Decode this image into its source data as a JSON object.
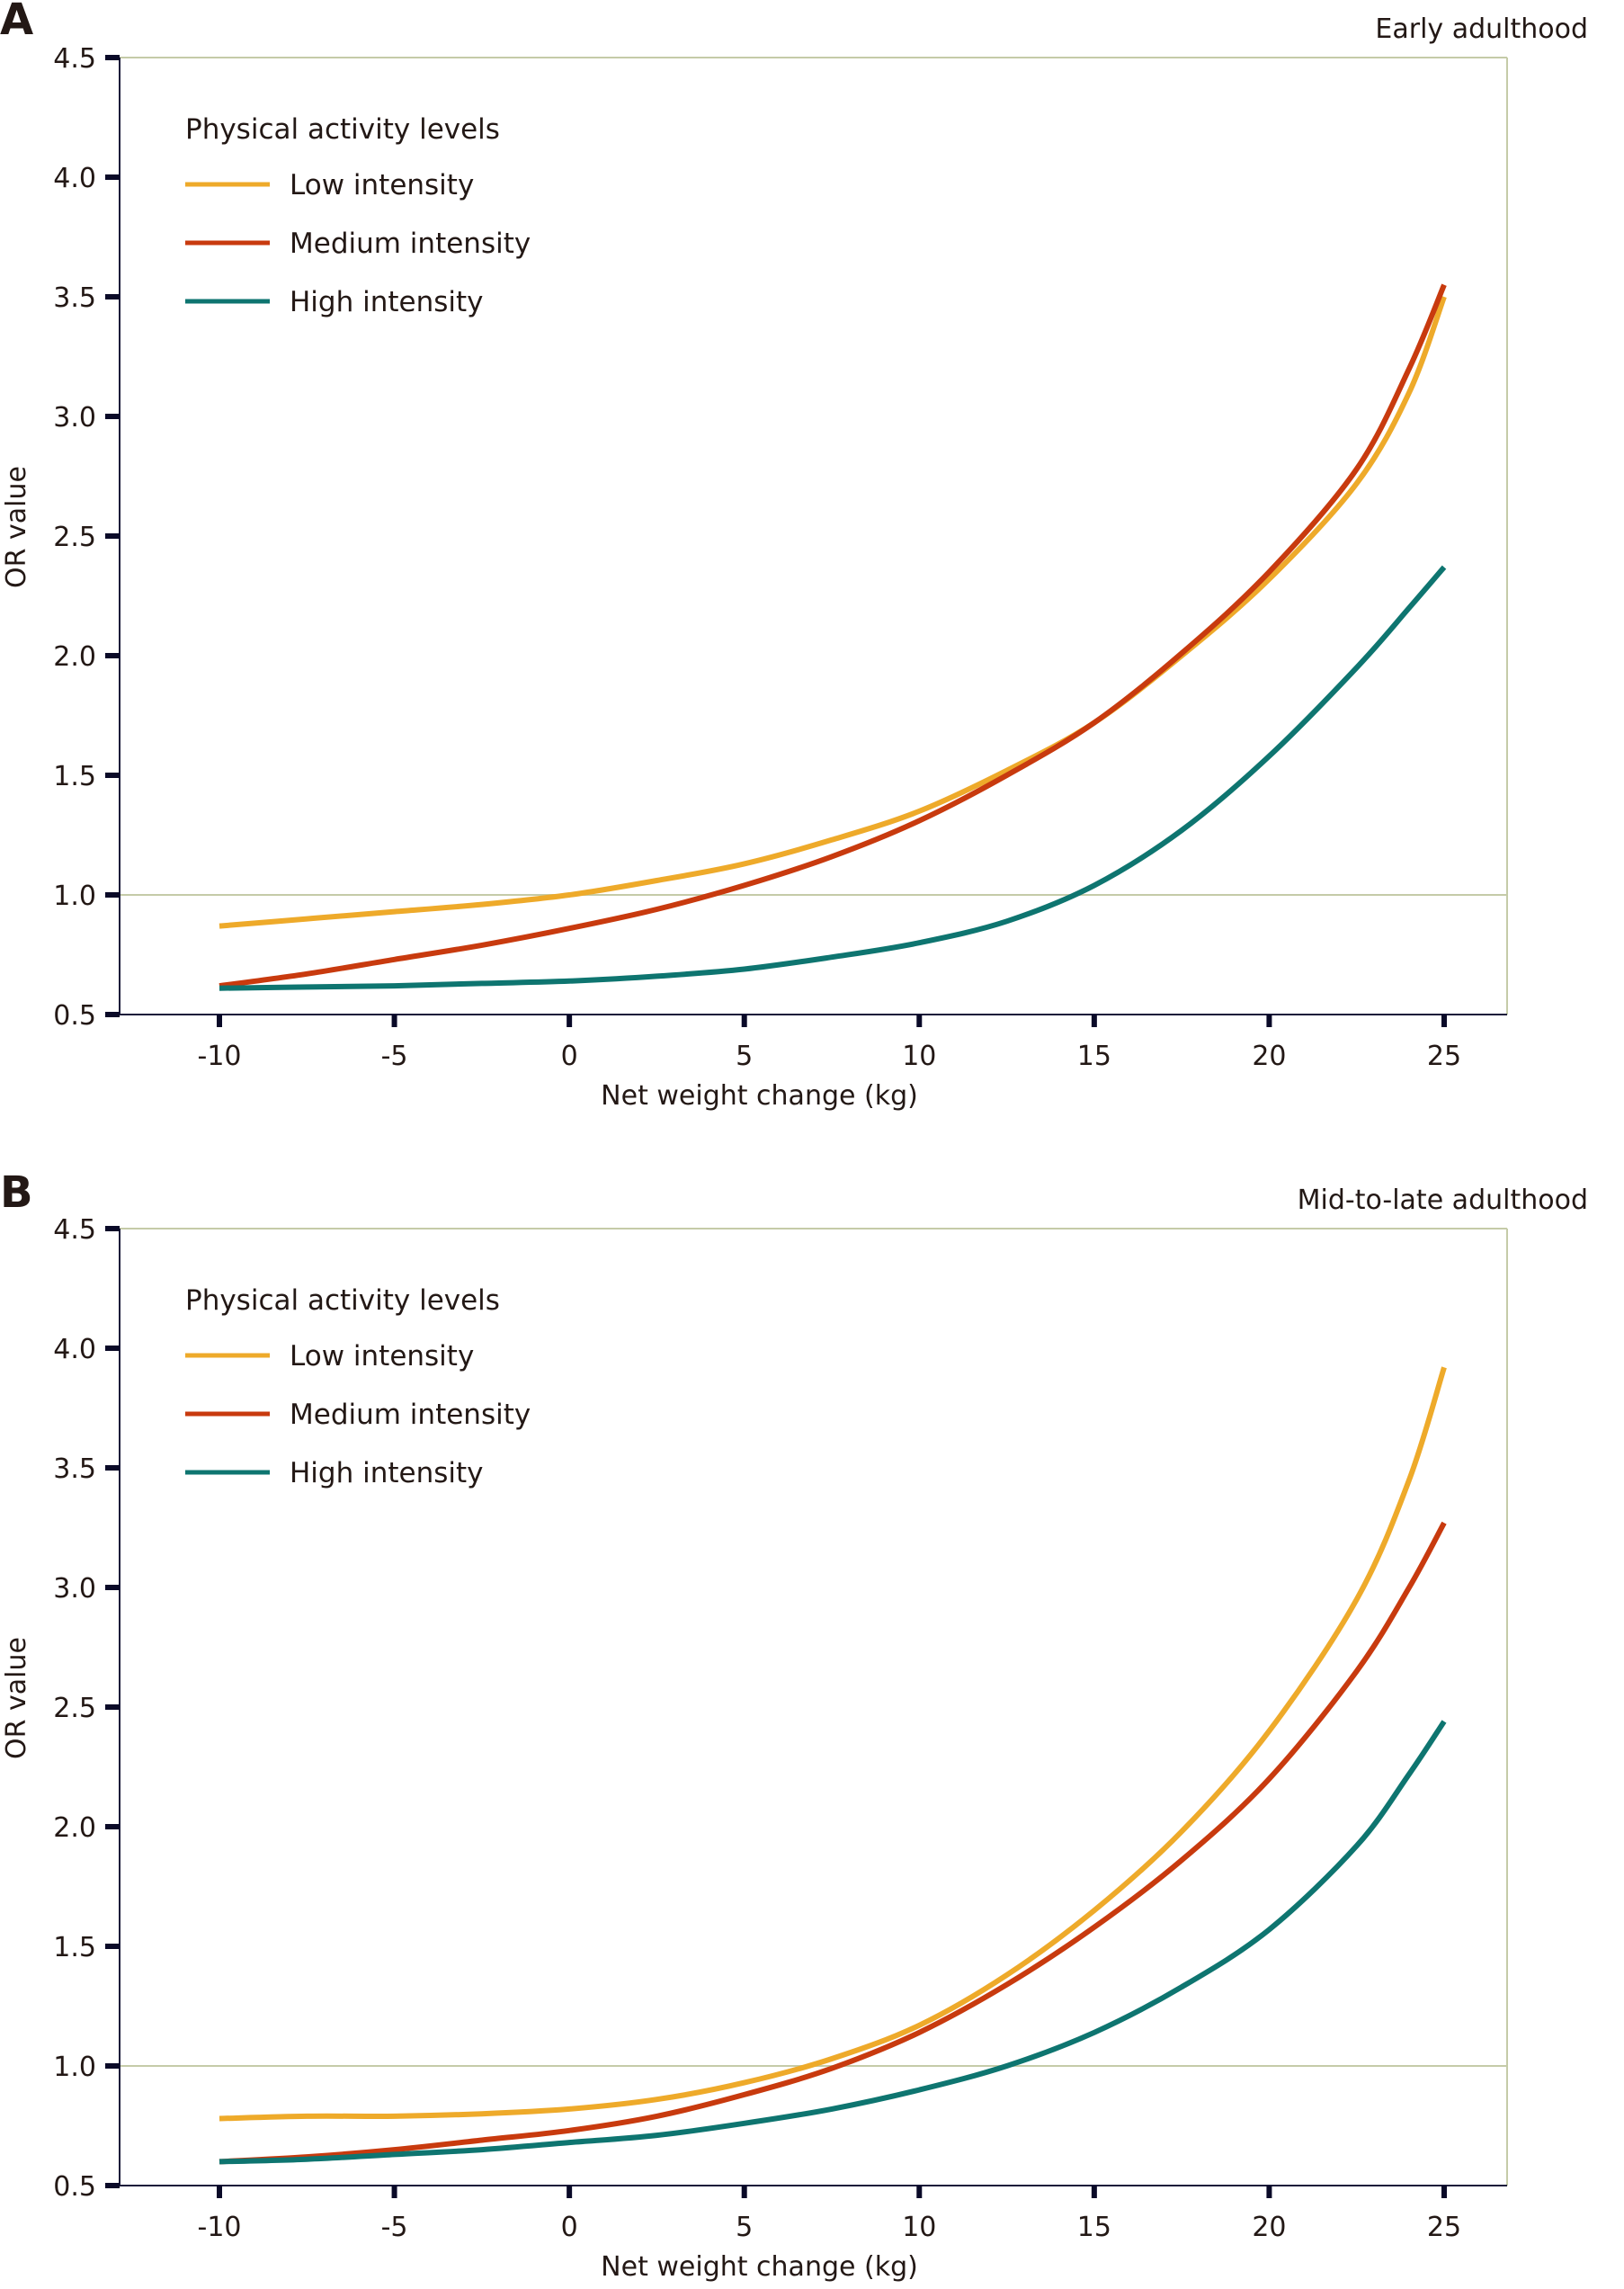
{
  "chart_data": [
    {
      "type": "line",
      "panel_label": "A",
      "title": "Early adulthood",
      "xlabel": "Net weight change (kg)",
      "ylabel": "OR value",
      "xlim": [
        -10,
        25
      ],
      "ylim": [
        0.5,
        4.5
      ],
      "xticks": [
        "-10",
        "-5",
        "0",
        "5",
        "10",
        "15",
        "20",
        "25"
      ],
      "yticks": [
        "0.5",
        "1.0",
        "1.5",
        "2.0",
        "2.5",
        "3.0",
        "3.5",
        "4.0",
        "4.5"
      ],
      "reference_line": 1.0,
      "legend_title": "Physical activity levels",
      "legend_position": "top-left",
      "x": [
        -10,
        -7.5,
        -5,
        -2.5,
        0,
        2.5,
        5,
        7.5,
        10,
        12.5,
        15,
        17.5,
        20,
        22.5,
        24,
        25
      ],
      "series": [
        {
          "name": "Low intensity",
          "color": "#EEAA2A",
          "values": [
            0.87,
            0.9,
            0.93,
            0.96,
            1.0,
            1.06,
            1.13,
            1.23,
            1.35,
            1.52,
            1.72,
            2.0,
            2.32,
            2.72,
            3.1,
            3.5
          ]
        },
        {
          "name": "Medium intensity",
          "color": "#C83A0E",
          "values": [
            0.62,
            0.67,
            0.73,
            0.79,
            0.86,
            0.94,
            1.04,
            1.16,
            1.31,
            1.5,
            1.72,
            2.01,
            2.35,
            2.78,
            3.2,
            3.55
          ]
        },
        {
          "name": "High intensity",
          "color": "#0E7570",
          "values": [
            0.61,
            0.615,
            0.62,
            0.63,
            0.64,
            0.66,
            0.69,
            0.74,
            0.8,
            0.89,
            1.04,
            1.27,
            1.58,
            1.95,
            2.2,
            2.37
          ]
        }
      ]
    },
    {
      "type": "line",
      "panel_label": "B",
      "title": "Mid-to-late adulthood",
      "xlabel": "Net weight change (kg)",
      "ylabel": "OR value",
      "xlim": [
        -10,
        25
      ],
      "ylim": [
        0.5,
        4.5
      ],
      "xticks": [
        "-10",
        "-5",
        "0",
        "5",
        "10",
        "15",
        "20",
        "25"
      ],
      "yticks": [
        "0.5",
        "1.0",
        "1.5",
        "2.0",
        "2.5",
        "3.0",
        "3.5",
        "4.0",
        "4.5"
      ],
      "reference_line": 1.0,
      "legend_title": "Physical activity levels",
      "legend_position": "top-left",
      "x": [
        -10,
        -7.5,
        -5,
        -2.5,
        0,
        2.5,
        5,
        7.5,
        10,
        12.5,
        15,
        17.5,
        20,
        22.5,
        24,
        25
      ],
      "series": [
        {
          "name": "Low intensity",
          "color": "#EEAA2A",
          "values": [
            0.78,
            0.79,
            0.79,
            0.8,
            0.82,
            0.86,
            0.93,
            1.03,
            1.17,
            1.38,
            1.65,
            1.98,
            2.4,
            2.95,
            3.45,
            3.92
          ]
        },
        {
          "name": "Medium intensity",
          "color": "#C83A0E",
          "values": [
            0.6,
            0.62,
            0.65,
            0.69,
            0.73,
            0.79,
            0.88,
            0.99,
            1.14,
            1.34,
            1.58,
            1.86,
            2.2,
            2.65,
            3.0,
            3.27
          ]
        },
        {
          "name": "High intensity",
          "color": "#0E7570",
          "values": [
            0.6,
            0.61,
            0.63,
            0.65,
            0.68,
            0.71,
            0.76,
            0.82,
            0.9,
            1.0,
            1.14,
            1.33,
            1.57,
            1.92,
            2.22,
            2.44
          ]
        }
      ]
    }
  ]
}
